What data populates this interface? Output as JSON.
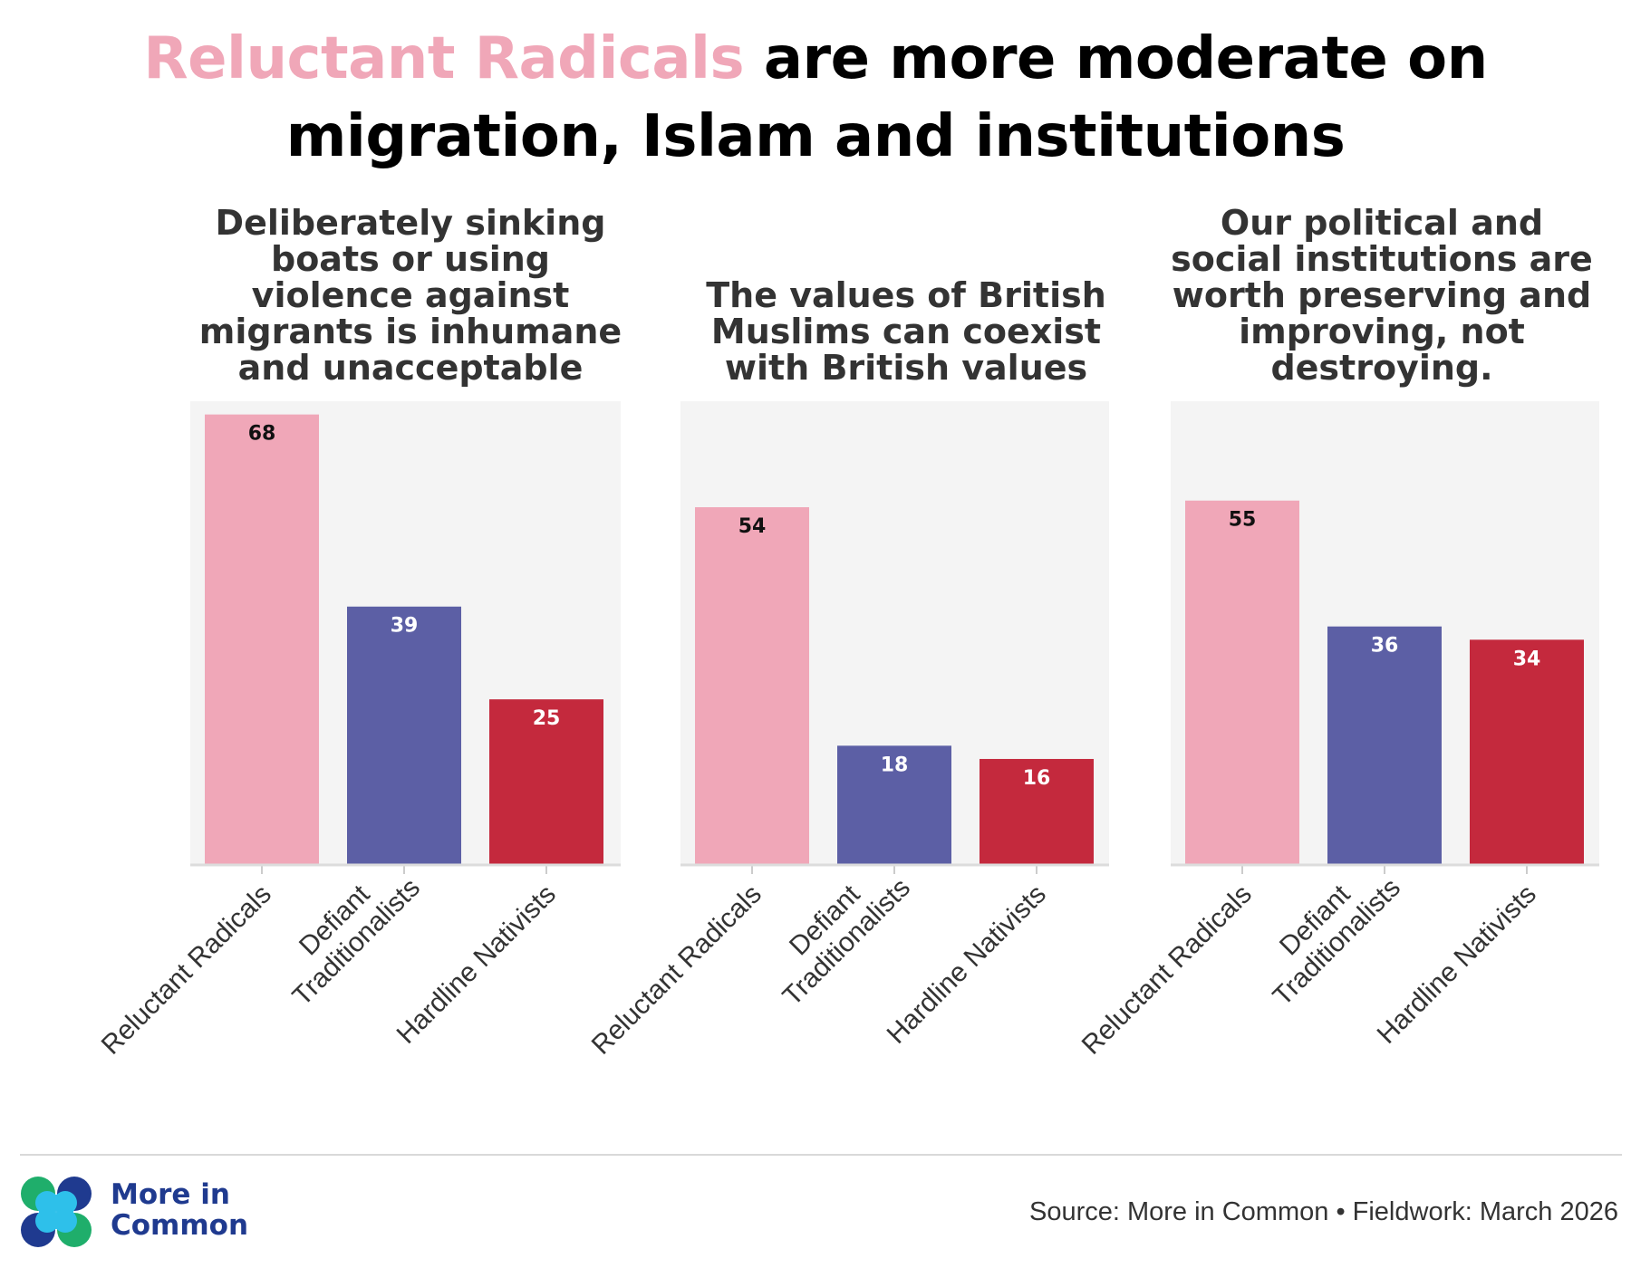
{
  "title": {
    "highlight": "Reluctant Radicals",
    "rest": " are more moderate on migration, Islam and institutions"
  },
  "colors": {
    "Reluctant Radicals": "#f0a7b8",
    "Defiant Traditionalists": "#5c5fa5",
    "Hardline Nativists": "#c4293d",
    "plot_background": "#f4f4f4",
    "title_highlight": "#f0a7b8"
  },
  "chart_data": [
    {
      "type": "bar",
      "title": "Deliberately sinking boats or using violence against migrants is inhumane and unacceptable",
      "categories": [
        "Reluctant Radicals",
        "Defiant Traditionalists",
        "Hardline Nativists"
      ],
      "values": [
        68,
        39,
        25
      ],
      "ylim": [
        0,
        70
      ],
      "grid": false,
      "data_labels": true
    },
    {
      "type": "bar",
      "title": "The values of British Muslims can coexist with British values",
      "categories": [
        "Reluctant Radicals",
        "Defiant Traditionalists",
        "Hardline Nativists"
      ],
      "values": [
        54,
        18,
        16
      ],
      "ylim": [
        0,
        70
      ],
      "grid": false,
      "data_labels": true
    },
    {
      "type": "bar",
      "title": "Our political and social institutions are worth preserving and improving, not destroying.",
      "categories": [
        "Reluctant Radicals",
        "Defiant Traditionalists",
        "Hardline Nativists"
      ],
      "values": [
        55,
        36,
        34
      ],
      "ylim": [
        0,
        70
      ],
      "grid": false,
      "data_labels": true
    }
  ],
  "tick_label_lines": {
    "Reluctant Radicals": [
      "Reluctant Radicals"
    ],
    "Defiant Traditionalists": [
      "Defiant",
      "Traditionalists"
    ],
    "Hardline Nativists": [
      "Hardline Nativists"
    ]
  },
  "footer": {
    "logo_line1": "More in",
    "logo_line2": "Common",
    "source": "Source: More in Common • Fieldwork: March 2026"
  }
}
